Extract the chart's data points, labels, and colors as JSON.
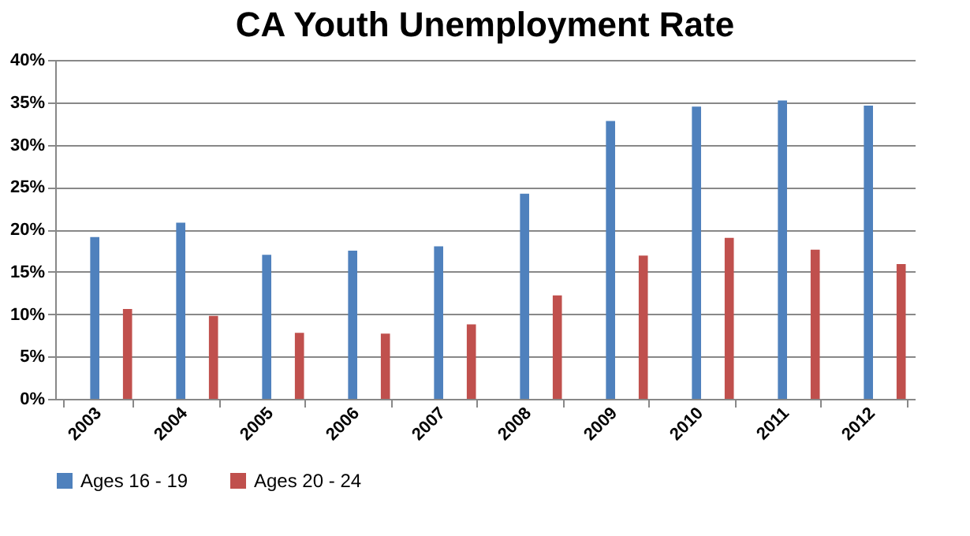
{
  "chart_data": {
    "type": "bar",
    "title": "CA Youth Unemployment Rate",
    "categories": [
      "2003",
      "2004",
      "2005",
      "2006",
      "2007",
      "2008",
      "2009",
      "2010",
      "2011",
      "2012"
    ],
    "series": [
      {
        "name": "Ages 16 - 19",
        "color": "#4f81bd",
        "values": [
          19.1,
          20.8,
          17.0,
          17.5,
          18.0,
          24.2,
          32.8,
          34.5,
          35.2,
          34.6
        ]
      },
      {
        "name": "Ages 20 - 24",
        "color": "#c0504d",
        "values": [
          10.6,
          9.8,
          7.8,
          7.7,
          8.8,
          12.2,
          16.9,
          19.0,
          17.6,
          15.9
        ]
      }
    ],
    "ylim": [
      0,
      40
    ],
    "yticks": [
      {
        "value": 0,
        "label": "0%"
      },
      {
        "value": 5,
        "label": "5%"
      },
      {
        "value": 10,
        "label": "10%"
      },
      {
        "value": 15,
        "label": "15%"
      },
      {
        "value": 20,
        "label": "20%"
      },
      {
        "value": 25,
        "label": "25%"
      },
      {
        "value": 30,
        "label": "30%"
      },
      {
        "value": 35,
        "label": "35%"
      },
      {
        "value": 40,
        "label": "40%"
      }
    ],
    "grid": "y",
    "legend": "bottom"
  }
}
